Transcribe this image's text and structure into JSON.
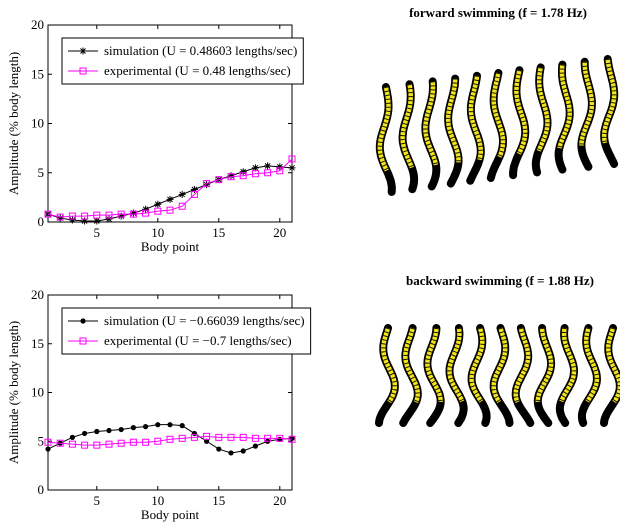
{
  "chart_data": [
    {
      "type": "line",
      "xlabel": "Body point",
      "ylabel": "Amplitude (% body length)",
      "x": [
        1,
        2,
        3,
        4,
        5,
        6,
        7,
        8,
        9,
        10,
        11,
        12,
        13,
        14,
        15,
        16,
        17,
        18,
        19,
        20,
        21
      ],
      "xlim": [
        1,
        21
      ],
      "xticks": [
        5,
        10,
        15,
        20
      ],
      "ylim": [
        0,
        20
      ],
      "yticks": [
        0,
        5,
        10,
        15,
        20
      ],
      "legend": "upper left",
      "series": [
        {
          "name": "simulation (U = 0.48603 lengths/sec)",
          "color": "#000000",
          "marker": "star",
          "values": [
            0.8,
            0.4,
            0.2,
            0.1,
            0.1,
            0.3,
            0.6,
            0.9,
            1.3,
            1.8,
            2.3,
            2.8,
            3.3,
            3.8,
            4.3,
            4.7,
            5.1,
            5.5,
            5.7,
            5.6,
            5.5
          ]
        },
        {
          "name": "experimental (U = 0.48 lengths/sec)",
          "color": "#ff00ff",
          "marker": "square",
          "values": [
            0.8,
            0.5,
            0.6,
            0.6,
            0.7,
            0.7,
            0.8,
            0.8,
            0.9,
            1.1,
            1.2,
            1.6,
            2.8,
            3.9,
            4.3,
            4.6,
            4.7,
            4.9,
            5.0,
            5.2,
            6.4
          ]
        }
      ]
    },
    {
      "type": "line",
      "xlabel": "Body point",
      "ylabel": "Amplitude (% body length)",
      "x": [
        1,
        2,
        3,
        4,
        5,
        6,
        7,
        8,
        9,
        10,
        11,
        12,
        13,
        14,
        15,
        16,
        17,
        18,
        19,
        20,
        21
      ],
      "xlim": [
        1,
        21
      ],
      "xticks": [
        5,
        10,
        15,
        20
      ],
      "ylim": [
        0,
        20
      ],
      "yticks": [
        0,
        5,
        10,
        15,
        20
      ],
      "legend": "upper left",
      "series": [
        {
          "name": "simulation (U = −0.66039 lengths/sec)",
          "color": "#000000",
          "marker": "dot",
          "values": [
            4.2,
            4.8,
            5.4,
            5.8,
            6.0,
            6.1,
            6.2,
            6.4,
            6.5,
            6.7,
            6.7,
            6.6,
            5.8,
            5.0,
            4.2,
            3.8,
            4.0,
            4.5,
            5.0,
            5.2,
            5.3
          ]
        },
        {
          "name": "experimental (U = −0.7 lengths/sec)",
          "color": "#ff00ff",
          "marker": "square",
          "values": [
            4.9,
            4.8,
            4.7,
            4.6,
            4.6,
            4.7,
            4.8,
            4.9,
            4.9,
            5.0,
            5.2,
            5.3,
            5.4,
            5.5,
            5.4,
            5.4,
            5.4,
            5.3,
            5.3,
            5.3,
            5.2
          ]
        }
      ]
    }
  ],
  "illustrations": [
    {
      "title": "forward swimming (f = 1.78 Hz)"
    },
    {
      "title": "backward swimming (f = 1.88 Hz)"
    }
  ]
}
